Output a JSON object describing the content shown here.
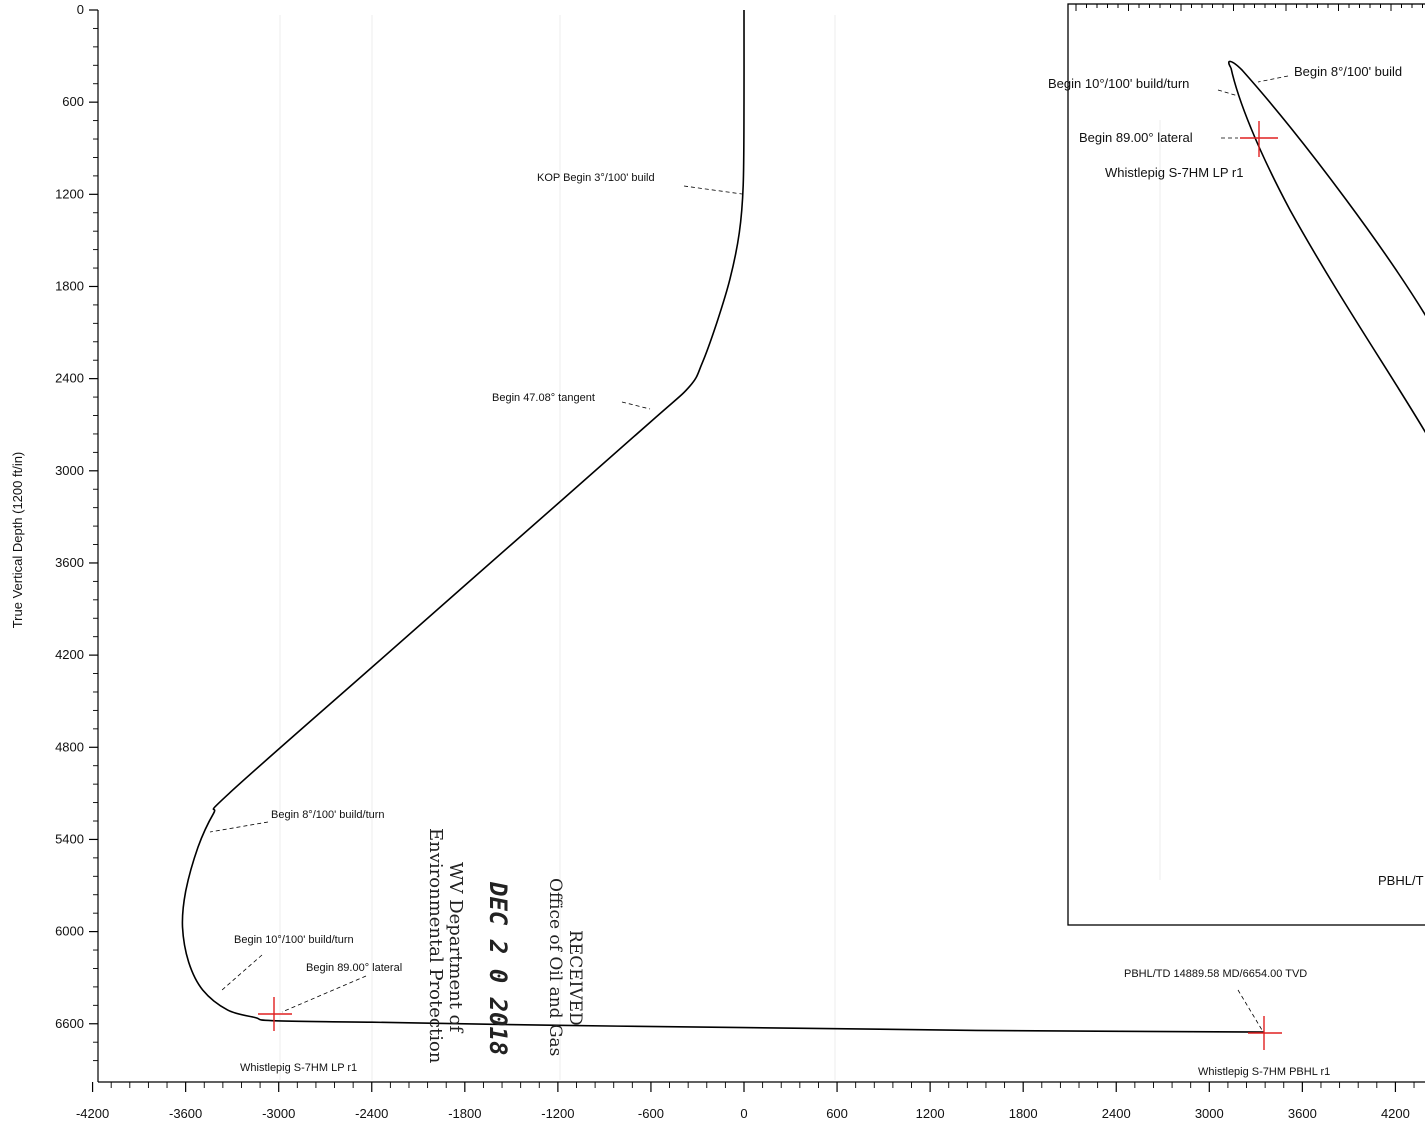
{
  "chart_data": {
    "type": "line",
    "ylabel": "True Vertical Depth (1200 ft/in)",
    "xlabel": "",
    "xlim": [
      -4200,
      4400
    ],
    "ylim": [
      0,
      6850
    ],
    "x_ticks": [
      "-4200",
      "-3600",
      "-3000",
      "-2400",
      "-1800",
      "-1200",
      "-600",
      "0",
      "600",
      "1200",
      "1800",
      "2400",
      "3000",
      "3600",
      "4200"
    ],
    "y_ticks": [
      "0",
      "600",
      "1200",
      "1800",
      "2400",
      "3000",
      "3600",
      "4200",
      "4800",
      "5400",
      "6000",
      "6600"
    ],
    "series": [
      {
        "x": [
          0,
          0,
          -5,
          -30,
          -90,
          -180,
          -270,
          -350,
          -600,
          -1500,
          -2400,
          -3320,
          -3420,
          -3520,
          -3600,
          -3620,
          -3580,
          -3490,
          -3330,
          -3150,
          -3040,
          -2400,
          -1200,
          0,
          1500,
          3350
        ],
        "y": [
          0,
          600,
          1140,
          1450,
          1750,
          2050,
          2300,
          2450,
          2680,
          3480,
          4280,
          5100,
          5230,
          5450,
          5740,
          5970,
          6200,
          6380,
          6510,
          6560,
          6580,
          6590,
          6610,
          6625,
          6643,
          6654
        ]
      }
    ],
    "annotations": [
      {
        "text": "KOP Begin 3°/100' build",
        "x": 0,
        "y": 1150
      },
      {
        "text": "Begin 47.08° tangent",
        "x": -600,
        "y": 2680
      },
      {
        "text": "Begin 8°/100' build/turn",
        "x": -3320,
        "y": 5100
      },
      {
        "text": "Begin 10°/100' build/turn",
        "x": -3490,
        "y": 6380
      },
      {
        "text": "Begin 89.00° lateral",
        "x": -3040,
        "y": 6580
      },
      {
        "text": "Whistlepig S-7HM LP r1",
        "x": -3040,
        "y": 6580
      },
      {
        "text": "PBHL/TD 14889.58 MD/6654.00 TVD",
        "x": 3350,
        "y": 6654
      },
      {
        "text": "Whistlepig S-7HM PBHL r1",
        "x": 3350,
        "y": 6654
      }
    ]
  },
  "inset": {
    "labels": {
      "build10": "Begin 10°/100' build/turn",
      "build8": "Begin 8°/100' build",
      "lateral": "Begin 89.00° lateral",
      "lp": "Whistlepig S-7HM LP r1",
      "pbhl": "PBHL/T"
    }
  },
  "stamp": {
    "line1": "RECEIVED",
    "line2": "Office of Oil and Gas",
    "date": "DEC 2 0 2018",
    "line3": "WV Department of",
    "line4": "Environmental Protection"
  },
  "colors": {
    "path": "#000000",
    "target_marker": "#e02020",
    "leader": "#000000"
  }
}
